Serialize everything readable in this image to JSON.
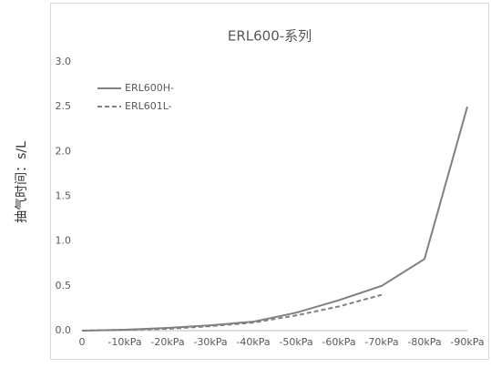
{
  "chart_data": {
    "type": "line",
    "title": "ERL600-系列",
    "y_label": "抽气时间：s/L",
    "categories": [
      "0",
      "-10kPa",
      "-20kPa",
      "-30kPa",
      "-40kPa",
      "-50kPa",
      "-60kPa",
      "-70kPa",
      "-80kPa",
      "-90kPa"
    ],
    "series": [
      {
        "name": "ERL600H-",
        "color": "#808080",
        "line_style": "solid",
        "values": [
          0,
          0.01,
          0.03,
          0.06,
          0.1,
          0.2,
          0.34,
          0.5,
          0.8,
          2.5
        ]
      },
      {
        "name": "ERL601L-",
        "color": "#808080",
        "line_style": "dashed",
        "values": [
          0,
          0.01,
          0.02,
          0.05,
          0.09,
          0.17,
          0.27,
          0.4,
          null,
          null
        ]
      }
    ],
    "ylim": [
      0,
      3
    ],
    "yticks": [
      {
        "value": 0,
        "label": "0.0"
      },
      0.5,
      {
        "value": 1,
        "label": "1.0"
      },
      1.5,
      {
        "value": 2,
        "label": "2.0"
      },
      2.5,
      {
        "value": 3,
        "label": "3.0"
      }
    ],
    "grid": false,
    "legend": "top-left"
  }
}
